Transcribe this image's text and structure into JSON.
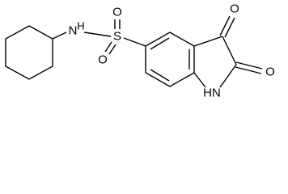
{
  "atoms": {
    "sulfonamide_n": "N",
    "sulfonamide_h": "H",
    "sulfur": "S",
    "sulfonyl_o1": "O",
    "sulfonyl_o2": "O",
    "keto_o3": "O",
    "keto_o2": "O",
    "ring_nh": "HN"
  }
}
